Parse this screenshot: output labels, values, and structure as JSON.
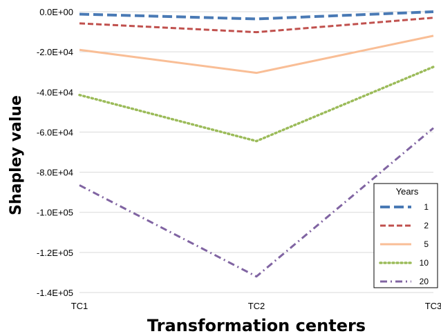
{
  "chart_data": {
    "type": "line",
    "xlabel": "Transformation centers",
    "ylabel": "Shapley value",
    "categories": [
      "TC1",
      "TC2",
      "TC3"
    ],
    "ylim": [
      -140000,
      0
    ],
    "yticks": [
      0,
      -20000,
      -40000,
      -60000,
      -80000,
      -100000,
      -120000,
      -140000
    ],
    "ytick_labels": [
      "0.0E+00",
      "-2.0E+04",
      "-4.0E+04",
      "-6.0E+04",
      "-8.0E+04",
      "-1.0E+05",
      "-1.2E+05",
      "-1.4E+05"
    ],
    "grid": true,
    "legend_title": "Years",
    "legend_position": "bottom-right",
    "series": [
      {
        "name": "1",
        "values": [
          -1200,
          -3600,
          0
        ],
        "color": "#4a7ab5",
        "dash": "long-dash"
      },
      {
        "name": "2",
        "values": [
          -5800,
          -10200,
          -3000
        ],
        "color": "#c0504d",
        "dash": "dash"
      },
      {
        "name": "5",
        "values": [
          -19000,
          -30500,
          -12000
        ],
        "color": "#f9be96",
        "dash": "solid"
      },
      {
        "name": "10",
        "values": [
          -41500,
          -64500,
          -27500
        ],
        "color": "#9bbb59",
        "dash": "dot"
      },
      {
        "name": "20",
        "values": [
          -86500,
          -132000,
          -58000
        ],
        "color": "#8064a2",
        "dash": "dash-dot"
      }
    ]
  }
}
